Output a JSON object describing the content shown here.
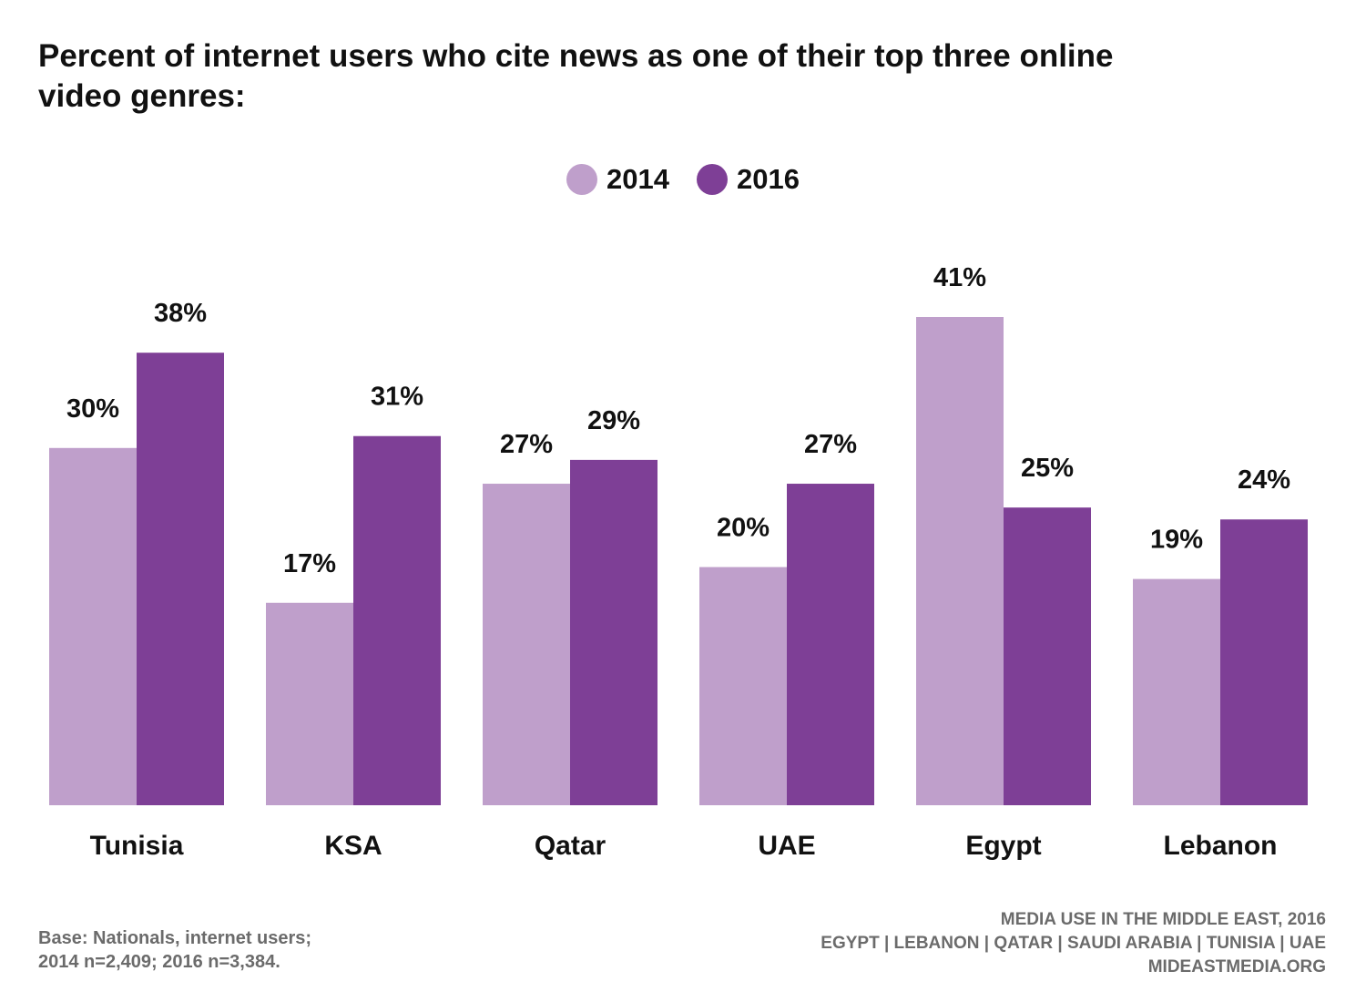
{
  "title": "Percent of internet users who cite news as one of their top three online video genres:",
  "colors": {
    "series_2014": "#bf9fcb",
    "series_2016": "#7e3f96"
  },
  "legend": [
    {
      "label": "2014",
      "color": "#bf9fcb"
    },
    {
      "label": "2016",
      "color": "#7e3f96"
    }
  ],
  "chart_data": {
    "type": "bar",
    "title": "Percent of internet users who cite news as one of their top three online video genres:",
    "categories": [
      "Tunisia",
      "KSA",
      "Qatar",
      "UAE",
      "Egypt",
      "Lebanon"
    ],
    "series": [
      {
        "name": "2014",
        "values": [
          30,
          17,
          27,
          20,
          41,
          19
        ],
        "labels": [
          "30%",
          "17%",
          "27%",
          "20%",
          "41%",
          "19%"
        ]
      },
      {
        "name": "2016",
        "values": [
          38,
          31,
          29,
          27,
          25,
          24
        ],
        "labels": [
          "38%",
          "31%",
          "29%",
          "27%",
          "25%",
          "24%"
        ]
      }
    ],
    "xlabel": "",
    "ylabel": "",
    "unit": "%",
    "ylim": [
      0,
      41
    ],
    "grid": false,
    "legend_position": "top-center"
  },
  "footer": {
    "base_line1": "Base: Nationals, internet users;",
    "base_line2": "2014 n=2,409; 2016 n=3,384.",
    "source_line1": "MEDIA USE IN THE MIDDLE EAST, 2016",
    "source_line2": "EGYPT | LEBANON | QATAR | SAUDI ARABIA | TUNISIA | UAE",
    "source_line3": "MIDEASTMEDIA.ORG"
  }
}
